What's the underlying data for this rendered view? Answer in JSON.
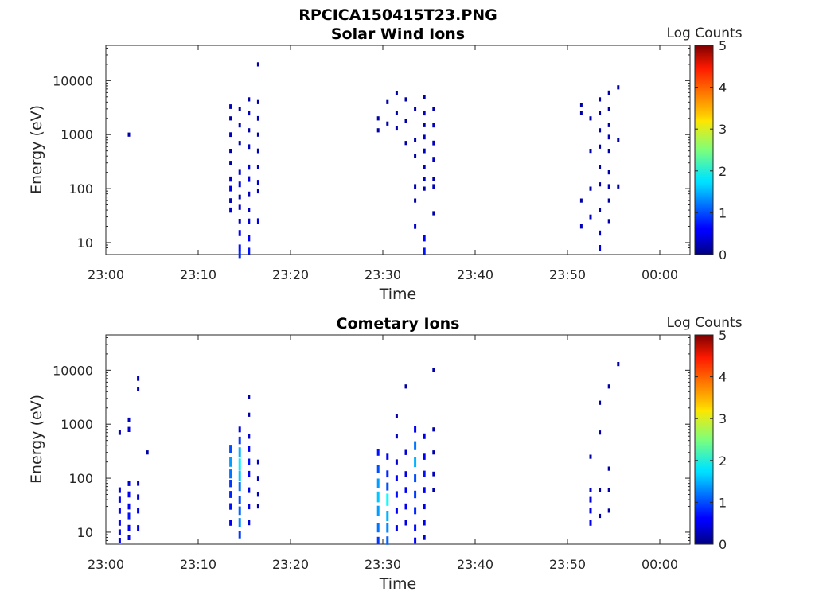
{
  "figure_title": "RPCICA150415T23.PNG",
  "chart_data": [
    {
      "type": "heatmap",
      "title": "Solar Wind Ions",
      "xlabel": "Time",
      "ylabel": "Energy (eV)",
      "x_scale": "time",
      "y_scale": "log",
      "xlim": [
        "23:00",
        "00:03"
      ],
      "ylim": [
        6,
        45000
      ],
      "x_ticks": [
        "23:00",
        "23:10",
        "23:20",
        "23:30",
        "23:40",
        "23:50",
        "00:00"
      ],
      "y_ticks": [
        "10",
        "100",
        "1000",
        "10000"
      ],
      "colorbar": {
        "label": "Log Counts",
        "range": [
          0,
          5
        ],
        "ticks": [
          "0",
          "1",
          "2",
          "3",
          "4",
          "5"
        ],
        "colormap": "jet"
      },
      "points": [
        [
          "23:02",
          1000,
          0.2
        ],
        [
          "23:13",
          3300,
          0.3
        ],
        [
          "23:13",
          2000,
          0.2
        ],
        [
          "23:13",
          1000,
          0.3
        ],
        [
          "23:13",
          500,
          0.2
        ],
        [
          "23:13",
          300,
          0.2
        ],
        [
          "23:13",
          150,
          0.4
        ],
        [
          "23:13",
          100,
          0.5
        ],
        [
          "23:13",
          60,
          0.3
        ],
        [
          "23:13",
          40,
          0.4
        ],
        [
          "23:14",
          3000,
          0.2
        ],
        [
          "23:14",
          1500,
          0.3
        ],
        [
          "23:14",
          700,
          0.2
        ],
        [
          "23:14",
          200,
          0.4
        ],
        [
          "23:14",
          120,
          0.5
        ],
        [
          "23:14",
          70,
          0.3
        ],
        [
          "23:14",
          45,
          0.4
        ],
        [
          "23:14",
          25,
          0.3
        ],
        [
          "23:14",
          15,
          0.6
        ],
        [
          "23:14",
          8,
          0.7
        ],
        [
          "23:14",
          6,
          0.8
        ],
        [
          "23:15",
          4500,
          0.2
        ],
        [
          "23:15",
          2500,
          0.3
        ],
        [
          "23:15",
          1200,
          0.2
        ],
        [
          "23:15",
          600,
          0.3
        ],
        [
          "23:15",
          250,
          0.4
        ],
        [
          "23:15",
          150,
          0.5
        ],
        [
          "23:15",
          80,
          0.3
        ],
        [
          "23:15",
          40,
          0.3
        ],
        [
          "23:15",
          25,
          0.4
        ],
        [
          "23:15",
          12,
          0.6
        ],
        [
          "23:15",
          7,
          0.7
        ],
        [
          "23:16",
          20000,
          0.2
        ],
        [
          "23:16",
          4000,
          0.2
        ],
        [
          "23:16",
          2000,
          0.3
        ],
        [
          "23:16",
          1000,
          0.2
        ],
        [
          "23:16",
          500,
          0.3
        ],
        [
          "23:16",
          250,
          0.3
        ],
        [
          "23:16",
          130,
          0.4
        ],
        [
          "23:16",
          90,
          0.3
        ],
        [
          "23:16",
          25,
          0.5
        ],
        [
          "23:29",
          2000,
          0.2
        ],
        [
          "23:29",
          1200,
          0.2
        ],
        [
          "23:30",
          4000,
          0.2
        ],
        [
          "23:30",
          1600,
          0.2
        ],
        [
          "23:31",
          5800,
          0.2
        ],
        [
          "23:31",
          2500,
          0.2
        ],
        [
          "23:31",
          1300,
          0.2
        ],
        [
          "23:32",
          4500,
          0.2
        ],
        [
          "23:32",
          1800,
          0.2
        ],
        [
          "23:32",
          700,
          0.2
        ],
        [
          "23:33",
          3000,
          0.2
        ],
        [
          "23:33",
          800,
          0.2
        ],
        [
          "23:33",
          400,
          0.2
        ],
        [
          "23:33",
          110,
          0.3
        ],
        [
          "23:33",
          60,
          0.2
        ],
        [
          "23:33",
          20,
          0.4
        ],
        [
          "23:34",
          5000,
          0.2
        ],
        [
          "23:34",
          2500,
          0.3
        ],
        [
          "23:34",
          1500,
          0.2
        ],
        [
          "23:34",
          900,
          0.3
        ],
        [
          "23:34",
          500,
          0.3
        ],
        [
          "23:34",
          250,
          0.3
        ],
        [
          "23:34",
          150,
          0.3
        ],
        [
          "23:34",
          100,
          0.2
        ],
        [
          "23:34",
          12,
          0.6
        ],
        [
          "23:34",
          7,
          0.7
        ],
        [
          "23:35",
          3000,
          0.2
        ],
        [
          "23:35",
          1500,
          0.3
        ],
        [
          "23:35",
          700,
          0.3
        ],
        [
          "23:35",
          350,
          0.3
        ],
        [
          "23:35",
          150,
          0.2
        ],
        [
          "23:35",
          110,
          0.3
        ],
        [
          "23:35",
          35,
          0.2
        ],
        [
          "23:51",
          3500,
          0.2
        ],
        [
          "23:51",
          2500,
          0.2
        ],
        [
          "23:51",
          60,
          0.2
        ],
        [
          "23:51",
          20,
          0.3
        ],
        [
          "23:52",
          2000,
          0.2
        ],
        [
          "23:52",
          500,
          0.2
        ],
        [
          "23:52",
          100,
          0.2
        ],
        [
          "23:52",
          30,
          0.3
        ],
        [
          "23:53",
          4500,
          0.2
        ],
        [
          "23:53",
          2500,
          0.2
        ],
        [
          "23:53",
          1200,
          0.2
        ],
        [
          "23:53",
          600,
          0.2
        ],
        [
          "23:53",
          250,
          0.2
        ],
        [
          "23:53",
          120,
          0.2
        ],
        [
          "23:53",
          40,
          0.2
        ],
        [
          "23:53",
          15,
          0.4
        ],
        [
          "23:53",
          8,
          0.5
        ],
        [
          "23:54",
          6000,
          0.2
        ],
        [
          "23:54",
          3000,
          0.2
        ],
        [
          "23:54",
          1500,
          0.2
        ],
        [
          "23:54",
          900,
          0.3
        ],
        [
          "23:54",
          500,
          0.2
        ],
        [
          "23:54",
          200,
          0.2
        ],
        [
          "23:54",
          110,
          0.3
        ],
        [
          "23:54",
          60,
          0.2
        ],
        [
          "23:54",
          25,
          0.2
        ],
        [
          "23:55",
          7500,
          0.2
        ],
        [
          "23:55",
          800,
          0.2
        ],
        [
          "23:55",
          110,
          0.2
        ]
      ]
    },
    {
      "type": "heatmap",
      "title": "Cometary Ions",
      "xlabel": "Time",
      "ylabel": "Energy (eV)",
      "x_scale": "time",
      "y_scale": "log",
      "xlim": [
        "23:00",
        "00:03"
      ],
      "ylim": [
        6,
        45000
      ],
      "x_ticks": [
        "23:00",
        "23:10",
        "23:20",
        "23:30",
        "23:40",
        "23:50",
        "00:00"
      ],
      "y_ticks": [
        "10",
        "100",
        "1000",
        "10000"
      ],
      "colorbar": {
        "label": "Log Counts",
        "range": [
          0,
          5
        ],
        "ticks": [
          "0",
          "1",
          "2",
          "3",
          "4",
          "5"
        ],
        "colormap": "jet"
      },
      "points": [
        [
          "23:01",
          700,
          0.3
        ],
        [
          "23:01",
          60,
          0.5
        ],
        [
          "23:01",
          40,
          0.6
        ],
        [
          "23:01",
          25,
          0.6
        ],
        [
          "23:01",
          15,
          0.6
        ],
        [
          "23:01",
          10,
          0.5
        ],
        [
          "23:01",
          7,
          0.5
        ],
        [
          "23:02",
          1200,
          0.3
        ],
        [
          "23:02",
          800,
          0.4
        ],
        [
          "23:02",
          80,
          0.4
        ],
        [
          "23:02",
          50,
          0.6
        ],
        [
          "23:02",
          30,
          0.6
        ],
        [
          "23:02",
          20,
          0.7
        ],
        [
          "23:02",
          12,
          0.6
        ],
        [
          "23:02",
          8,
          0.5
        ],
        [
          "23:03",
          7000,
          0.3
        ],
        [
          "23:03",
          4500,
          0.3
        ],
        [
          "23:03",
          80,
          0.3
        ],
        [
          "23:03",
          45,
          0.4
        ],
        [
          "23:03",
          25,
          0.5
        ],
        [
          "23:03",
          12,
          0.5
        ],
        [
          "23:04",
          300,
          0.2
        ],
        [
          "23:13",
          350,
          1.0
        ],
        [
          "23:13",
          200,
          1.4
        ],
        [
          "23:13",
          120,
          1.2
        ],
        [
          "23:13",
          80,
          0.9
        ],
        [
          "23:13",
          50,
          0.8
        ],
        [
          "23:13",
          30,
          0.7
        ],
        [
          "23:13",
          15,
          0.6
        ],
        [
          "23:14",
          800,
          0.5
        ],
        [
          "23:14",
          500,
          0.9
        ],
        [
          "23:14",
          300,
          1.5
        ],
        [
          "23:14",
          180,
          1.8
        ],
        [
          "23:14",
          110,
          1.6
        ],
        [
          "23:14",
          70,
          1.2
        ],
        [
          "23:14",
          40,
          1.0
        ],
        [
          "23:14",
          25,
          1.1
        ],
        [
          "23:14",
          15,
          1.3
        ],
        [
          "23:14",
          9,
          0.9
        ],
        [
          "23:15",
          3200,
          0.2
        ],
        [
          "23:15",
          1500,
          0.2
        ],
        [
          "23:15",
          600,
          0.4
        ],
        [
          "23:15",
          350,
          0.6
        ],
        [
          "23:15",
          200,
          0.7
        ],
        [
          "23:15",
          120,
          0.6
        ],
        [
          "23:15",
          60,
          0.5
        ],
        [
          "23:15",
          30,
          0.5
        ],
        [
          "23:15",
          15,
          0.4
        ],
        [
          "23:16",
          200,
          0.3
        ],
        [
          "23:16",
          100,
          0.3
        ],
        [
          "23:16",
          50,
          0.3
        ],
        [
          "23:16",
          30,
          0.2
        ],
        [
          "23:29",
          300,
          0.7
        ],
        [
          "23:29",
          150,
          1.0
        ],
        [
          "23:29",
          80,
          1.4
        ],
        [
          "23:29",
          45,
          1.6
        ],
        [
          "23:29",
          25,
          1.4
        ],
        [
          "23:29",
          12,
          1.2
        ],
        [
          "23:29",
          7,
          0.9
        ],
        [
          "23:30",
          250,
          0.6
        ],
        [
          "23:30",
          120,
          0.8
        ],
        [
          "23:30",
          70,
          1.0
        ],
        [
          "23:30",
          40,
          1.9
        ],
        [
          "23:30",
          20,
          1.5
        ],
        [
          "23:30",
          12,
          1.3
        ],
        [
          "23:30",
          7,
          1.1
        ],
        [
          "23:31",
          1400,
          0.2
        ],
        [
          "23:31",
          600,
          0.3
        ],
        [
          "23:31",
          200,
          0.4
        ],
        [
          "23:31",
          100,
          0.6
        ],
        [
          "23:31",
          50,
          0.7
        ],
        [
          "23:31",
          25,
          0.6
        ],
        [
          "23:31",
          12,
          0.5
        ],
        [
          "23:32",
          5000,
          0.2
        ],
        [
          "23:32",
          300,
          0.4
        ],
        [
          "23:32",
          120,
          0.5
        ],
        [
          "23:32",
          60,
          0.6
        ],
        [
          "23:32",
          30,
          0.6
        ],
        [
          "23:32",
          15,
          0.5
        ],
        [
          "23:33",
          800,
          0.6
        ],
        [
          "23:33",
          400,
          1.2
        ],
        [
          "23:33",
          200,
          1.5
        ],
        [
          "23:33",
          100,
          1.0
        ],
        [
          "23:33",
          50,
          0.9
        ],
        [
          "23:33",
          25,
          0.8
        ],
        [
          "23:33",
          12,
          0.7
        ],
        [
          "23:33",
          7,
          0.6
        ],
        [
          "23:34",
          600,
          0.5
        ],
        [
          "23:34",
          250,
          0.6
        ],
        [
          "23:34",
          120,
          0.7
        ],
        [
          "23:34",
          60,
          0.6
        ],
        [
          "23:34",
          30,
          0.5
        ],
        [
          "23:34",
          15,
          0.5
        ],
        [
          "23:34",
          8,
          0.4
        ],
        [
          "23:35",
          10000,
          0.2
        ],
        [
          "23:35",
          800,
          0.2
        ],
        [
          "23:35",
          300,
          0.2
        ],
        [
          "23:35",
          120,
          0.3
        ],
        [
          "23:35",
          60,
          0.2
        ],
        [
          "23:52",
          250,
          0.2
        ],
        [
          "23:52",
          60,
          0.3
        ],
        [
          "23:52",
          40,
          0.5
        ],
        [
          "23:52",
          25,
          0.5
        ],
        [
          "23:52",
          15,
          0.6
        ],
        [
          "23:53",
          2500,
          0.2
        ],
        [
          "23:53",
          700,
          0.2
        ],
        [
          "23:53",
          60,
          0.2
        ],
        [
          "23:53",
          20,
          0.2
        ],
        [
          "23:54",
          5000,
          0.2
        ],
        [
          "23:54",
          150,
          0.2
        ],
        [
          "23:54",
          60,
          0.2
        ],
        [
          "23:54",
          25,
          0.2
        ],
        [
          "23:55",
          13000,
          0.2
        ]
      ]
    }
  ]
}
